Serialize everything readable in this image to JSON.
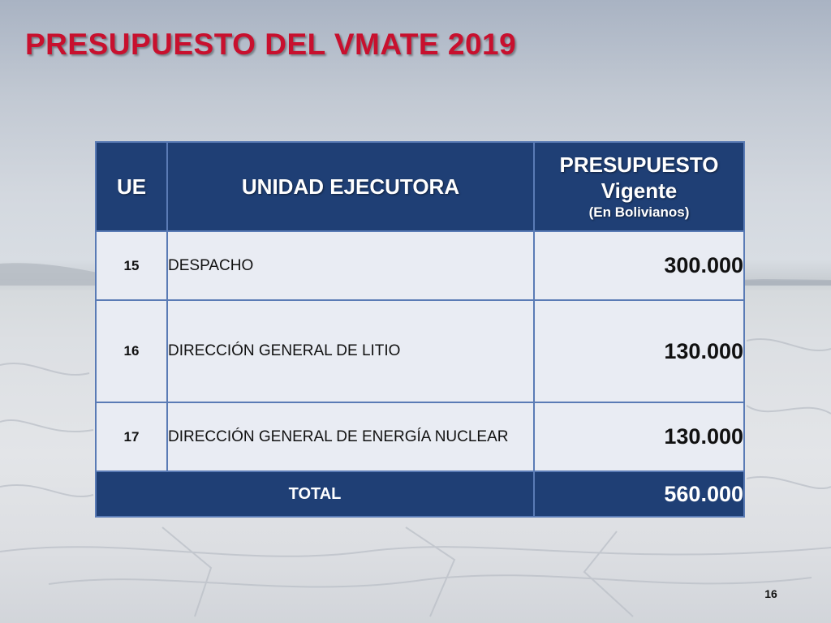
{
  "slide": {
    "title": "PRESUPUESTO DEL VMATE 2019",
    "page_number": "16"
  },
  "table": {
    "headers": {
      "ue": "UE",
      "unidad": "UNIDAD EJECUTORA",
      "presupuesto_line1": "PRESUPUESTO",
      "presupuesto_line2": "Vigente",
      "presupuesto_line3": "(En Bolivianos)"
    },
    "rows": [
      {
        "ue": "15",
        "unidad": "DESPACHO",
        "presupuesto": "300.000"
      },
      {
        "ue": "16",
        "unidad": "DIRECCIÓN GENERAL DE LITIO",
        "presupuesto": "130.000"
      },
      {
        "ue": "17",
        "unidad": "DIRECCIÓN GENERAL DE ENERGÍA NUCLEAR",
        "presupuesto": "130.000"
      }
    ],
    "total": {
      "label": "TOTAL",
      "value": "560.000"
    }
  },
  "colors": {
    "title": "#c8102e",
    "header_bg": "#1f3f75",
    "row_bg": "#e9ecf3",
    "border": "#5a7bb5"
  }
}
